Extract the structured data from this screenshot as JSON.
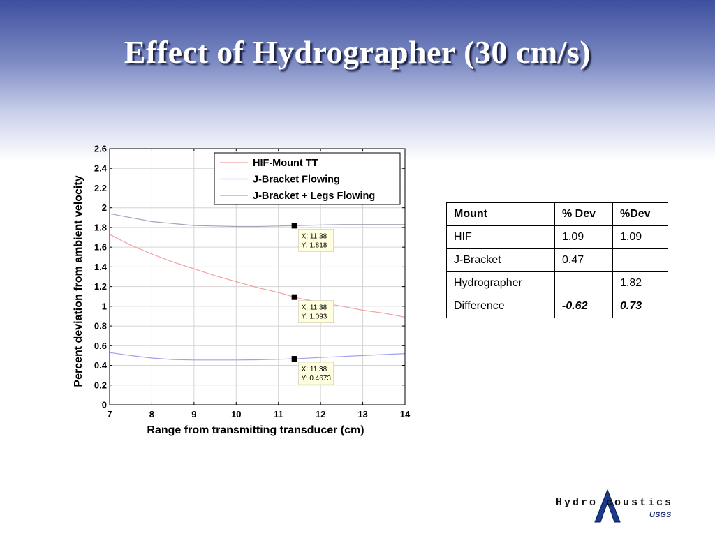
{
  "slide": {
    "title": "Effect of Hydrographer (30 cm/s)"
  },
  "chart_data": {
    "type": "line",
    "xlabel": "Range from transmitting transducer (cm)",
    "ylabel": "Percent deviation from ambient velocity",
    "xlim": [
      7,
      14
    ],
    "ylim": [
      0,
      2.6
    ],
    "x_ticks": [
      "7",
      "8",
      "9",
      "10",
      "11",
      "12",
      "13",
      "14"
    ],
    "y_ticks": [
      "0",
      "0.2",
      "0.4",
      "0.6",
      "0.8",
      "1",
      "1.2",
      "1.4",
      "1.6",
      "1.8",
      "2",
      "2.2",
      "2.4",
      "2.6"
    ],
    "grid": true,
    "legend_position": "top-right",
    "series": [
      {
        "name": "HIF-Mount TT",
        "color": "#f2a0a0",
        "x": [
          7,
          7.5,
          8,
          8.5,
          9,
          9.5,
          10,
          10.5,
          11,
          11.38,
          11.5,
          12,
          12.5,
          13,
          13.5,
          14
        ],
        "y": [
          1.73,
          1.62,
          1.53,
          1.45,
          1.38,
          1.31,
          1.25,
          1.19,
          1.14,
          1.093,
          1.08,
          1.04,
          1.0,
          0.96,
          0.93,
          0.89
        ]
      },
      {
        "name": "J-Bracket Flowing",
        "color": "#a0a0ee",
        "x": [
          7,
          7.5,
          8,
          8.5,
          9,
          9.5,
          10,
          10.5,
          11,
          11.38,
          11.5,
          12,
          12.5,
          13,
          13.5,
          14
        ],
        "y": [
          0.53,
          0.5,
          0.475,
          0.46,
          0.455,
          0.455,
          0.455,
          0.457,
          0.462,
          0.4673,
          0.47,
          0.48,
          0.49,
          0.5,
          0.51,
          0.52
        ]
      },
      {
        "name": "J-Bracket + Legs Flowing",
        "color": "#a4a4bc",
        "x": [
          7,
          7.5,
          8,
          8.5,
          9,
          9.5,
          10,
          10.5,
          11,
          11.38,
          11.5,
          12,
          12.5,
          13,
          13.5,
          14
        ],
        "y": [
          1.94,
          1.9,
          1.86,
          1.84,
          1.82,
          1.815,
          1.81,
          1.81,
          1.815,
          1.818,
          1.82,
          1.825,
          1.83,
          1.83,
          1.83,
          1.83
        ]
      }
    ],
    "datatips": [
      {
        "x": 11.38,
        "y": 1.818,
        "x_label": "X: 11.38",
        "y_label": "Y: 1.818"
      },
      {
        "x": 11.38,
        "y": 1.093,
        "x_label": "X: 11.38",
        "y_label": "Y: 1.093"
      },
      {
        "x": 11.38,
        "y": 0.4673,
        "x_label": "X: 11.38",
        "y_label": "Y: 0.4673"
      }
    ]
  },
  "table": {
    "headers": [
      "Mount",
      "% Dev",
      "%Dev"
    ],
    "rows": [
      [
        "HIF",
        "1.09",
        "1.09"
      ],
      [
        "J-Bracket",
        "0.47",
        ""
      ],
      [
        "Hydrographer",
        "",
        "1.82"
      ],
      [
        "Difference",
        "-0.62",
        "0.73"
      ]
    ]
  },
  "logo": {
    "text": "Hydro coustics",
    "sub": "USGS",
    "icon": "hydroacoustics-a-logo"
  }
}
